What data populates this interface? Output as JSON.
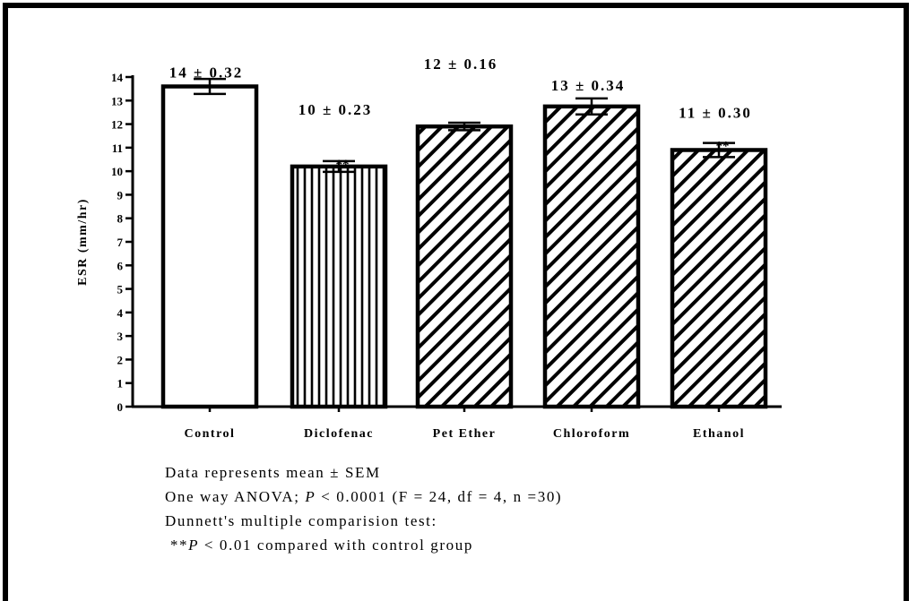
{
  "chart_data": {
    "type": "bar",
    "title": "",
    "xlabel": "",
    "ylabel": "ESR (mm/hr)",
    "ylim": [
      0,
      14
    ],
    "yticks": [
      0,
      1,
      2,
      3,
      4,
      5,
      6,
      7,
      8,
      9,
      10,
      11,
      12,
      13,
      14
    ],
    "grid": false,
    "categories": [
      "Control",
      "Diclofenac",
      "Pet Ether",
      "Chloroform",
      "Ethanol"
    ],
    "values": [
      13.6,
      10.2,
      11.9,
      12.75,
      10.9
    ],
    "errors": [
      0.32,
      0.23,
      0.16,
      0.34,
      0.3
    ],
    "data_labels": [
      "14 ± 0.32",
      "10 ± 0.23",
      "12 ± 0.16",
      "13 ± 0.34",
      "11 ± 0.30"
    ],
    "fill_patterns": [
      "none",
      "vertical-lines",
      "diagonal-lines",
      "diagonal-lines",
      "diagonal-lines"
    ],
    "significance": [
      "",
      "**",
      "",
      "",
      "**"
    ],
    "colors": {
      "stroke": "#000000",
      "fill": "#ffffff"
    }
  },
  "notes": {
    "line1": "Data represents mean ± SEM",
    "line2_prefix": "One way ANOVA; ",
    "line2_p": "P",
    "line2_suffix": " < 0.0001 (F = 24, df = 4, n =30)",
    "line3": "Dunnett's multiple comparision test:",
    "line4_prefix": "**",
    "line4_p": "P",
    "line4_suffix": " < 0.01 compared with control group"
  }
}
